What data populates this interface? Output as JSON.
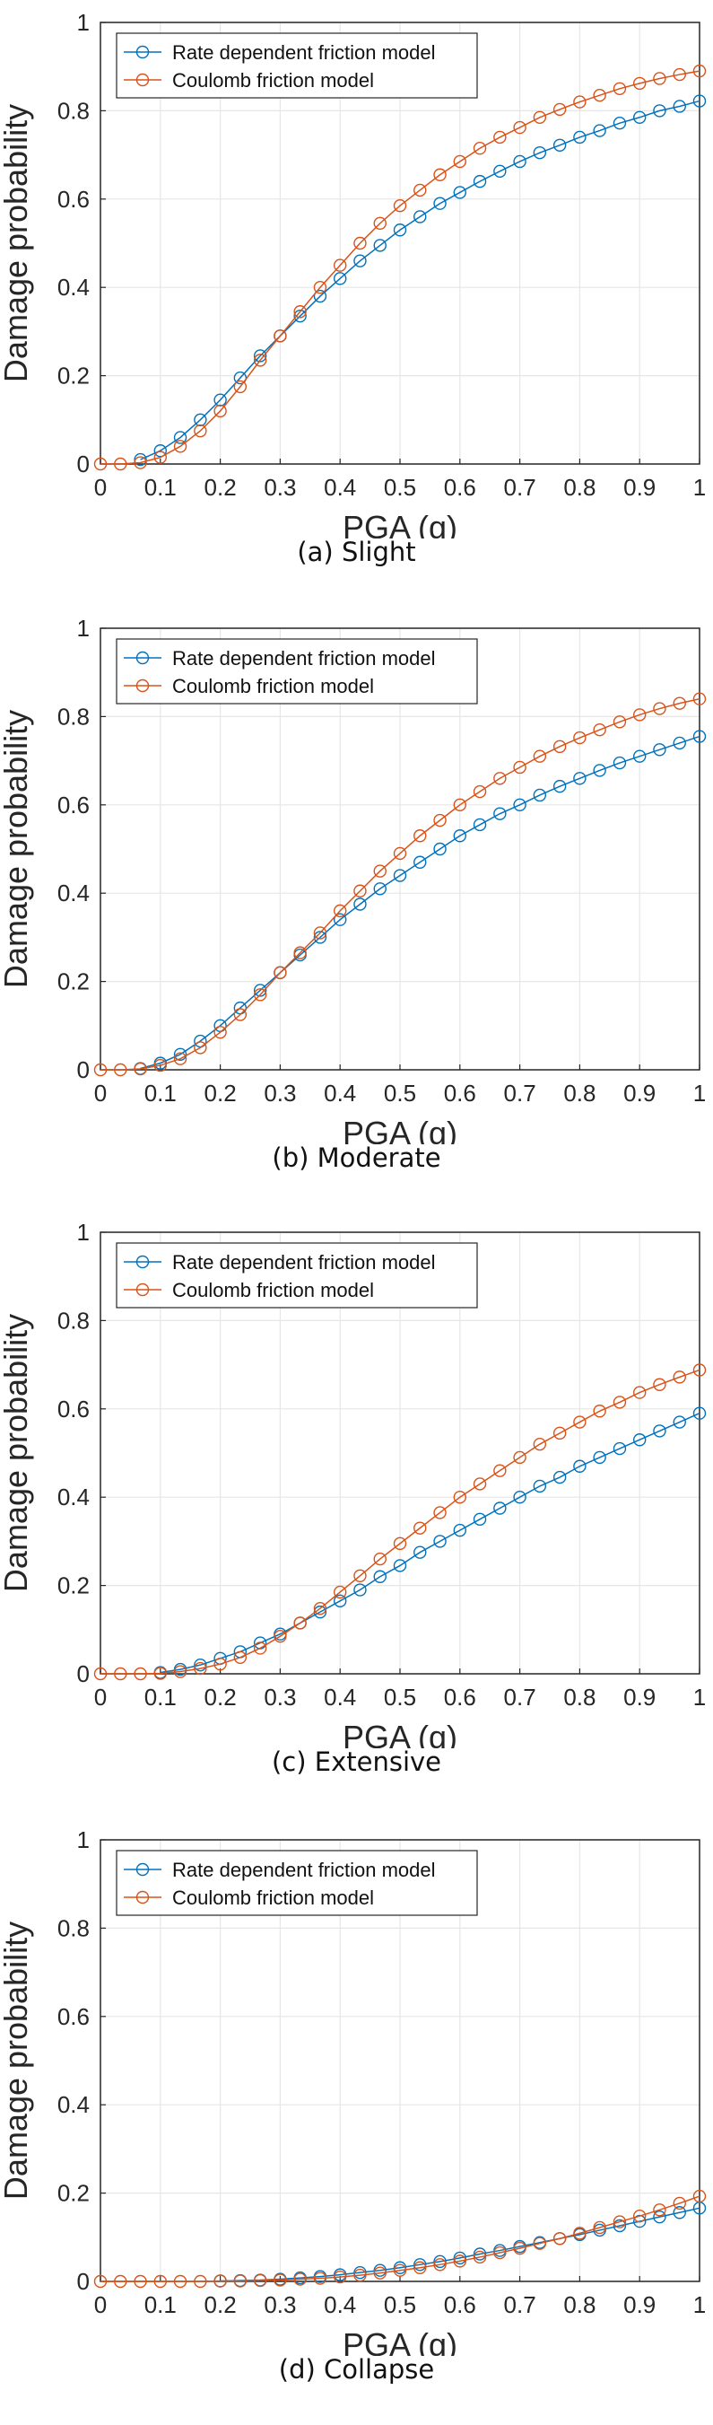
{
  "colors": {
    "rate": "#0072BD",
    "coulomb": "#D95319",
    "grid": "#E6E6E6",
    "axis": "#262626"
  },
  "chart_data": [
    {
      "type": "line",
      "caption": "(a) Slight",
      "xlabel": "PGA (g)",
      "ylabel": "Damage probability",
      "xlim": [
        0,
        1
      ],
      "ylim": [
        0,
        1
      ],
      "xticks": [
        "0",
        "0.1",
        "0.2",
        "0.3",
        "0.4",
        "0.5",
        "0.6",
        "0.7",
        "0.8",
        "0.9",
        "1"
      ],
      "yticks": [
        "0",
        "0.2",
        "0.4",
        "0.6",
        "0.8",
        "1"
      ],
      "grid": true,
      "legend": "top-left",
      "x": [
        0,
        0.0333,
        0.0667,
        0.1,
        0.1333,
        0.1667,
        0.2,
        0.2333,
        0.2667,
        0.3,
        0.3333,
        0.3667,
        0.4,
        0.4333,
        0.4667,
        0.5,
        0.5333,
        0.5667,
        0.6,
        0.6333,
        0.6667,
        0.7,
        0.7333,
        0.7667,
        0.8,
        0.8333,
        0.8667,
        0.9,
        0.9333,
        0.9667,
        1
      ],
      "series": [
        {
          "name": "Rate dependent friction model",
          "start": 2,
          "values": [
            null,
            null,
            0.01,
            0.03,
            0.06,
            0.1,
            0.145,
            0.195,
            0.245,
            0.29,
            0.335,
            0.38,
            0.42,
            0.46,
            0.495,
            0.53,
            0.56,
            0.59,
            0.615,
            0.64,
            0.663,
            0.685,
            0.705,
            0.722,
            0.74,
            0.755,
            0.772,
            0.785,
            0.8,
            0.81,
            0.822
          ]
        },
        {
          "name": "Coulomb friction model",
          "start": 0,
          "values": [
            0,
            0,
            0.003,
            0.015,
            0.04,
            0.075,
            0.12,
            0.175,
            0.235,
            0.29,
            0.345,
            0.4,
            0.45,
            0.5,
            0.545,
            0.585,
            0.62,
            0.655,
            0.685,
            0.715,
            0.74,
            0.762,
            0.785,
            0.803,
            0.82,
            0.835,
            0.85,
            0.862,
            0.873,
            0.882,
            0.89
          ]
        }
      ]
    },
    {
      "type": "line",
      "caption": "(b) Moderate",
      "xlabel": "PGA (g)",
      "ylabel": "Damage probability",
      "xlim": [
        0,
        1
      ],
      "ylim": [
        0,
        1
      ],
      "xticks": [
        "0",
        "0.1",
        "0.2",
        "0.3",
        "0.4",
        "0.5",
        "0.6",
        "0.7",
        "0.8",
        "0.9",
        "1"
      ],
      "yticks": [
        "0",
        "0.2",
        "0.4",
        "0.6",
        "0.8",
        "1"
      ],
      "grid": true,
      "legend": "top-left",
      "x": [
        0,
        0.0333,
        0.0667,
        0.1,
        0.1333,
        0.1667,
        0.2,
        0.2333,
        0.2667,
        0.3,
        0.3333,
        0.3667,
        0.4,
        0.4333,
        0.4667,
        0.5,
        0.5333,
        0.5667,
        0.6,
        0.6333,
        0.6667,
        0.7,
        0.7333,
        0.7667,
        0.8,
        0.8333,
        0.8667,
        0.9,
        0.9333,
        0.9667,
        1
      ],
      "series": [
        {
          "name": "Rate dependent friction model",
          "start": 2,
          "values": [
            null,
            null,
            0.003,
            0.015,
            0.035,
            0.065,
            0.1,
            0.14,
            0.18,
            0.22,
            0.26,
            0.3,
            0.34,
            0.375,
            0.41,
            0.44,
            0.47,
            0.5,
            0.53,
            0.555,
            0.58,
            0.6,
            0.622,
            0.642,
            0.66,
            0.678,
            0.695,
            0.71,
            0.725,
            0.74,
            0.755
          ]
        },
        {
          "name": "Coulomb friction model",
          "start": 0,
          "values": [
            0,
            0,
            0.002,
            0.01,
            0.025,
            0.05,
            0.085,
            0.125,
            0.17,
            0.22,
            0.265,
            0.31,
            0.36,
            0.405,
            0.45,
            0.49,
            0.53,
            0.565,
            0.6,
            0.63,
            0.66,
            0.685,
            0.71,
            0.732,
            0.752,
            0.77,
            0.788,
            0.804,
            0.818,
            0.83,
            0.84
          ]
        }
      ]
    },
    {
      "type": "line",
      "caption": "(c) Extensive",
      "xlabel": "PGA (g)",
      "ylabel": "Damage probability",
      "xlim": [
        0,
        1
      ],
      "ylim": [
        0,
        1
      ],
      "xticks": [
        "0",
        "0.1",
        "0.2",
        "0.3",
        "0.4",
        "0.5",
        "0.6",
        "0.7",
        "0.8",
        "0.9",
        "1"
      ],
      "yticks": [
        "0",
        "0.2",
        "0.4",
        "0.6",
        "0.8",
        "1"
      ],
      "grid": true,
      "legend": "top-left",
      "x": [
        0,
        0.0333,
        0.0667,
        0.1,
        0.1333,
        0.1667,
        0.2,
        0.2333,
        0.2667,
        0.3,
        0.3333,
        0.3667,
        0.4,
        0.4333,
        0.4667,
        0.5,
        0.5333,
        0.5667,
        0.6,
        0.6333,
        0.6667,
        0.7,
        0.7333,
        0.7667,
        0.8,
        0.8333,
        0.8667,
        0.9,
        0.9333,
        0.9667,
        1
      ],
      "series": [
        {
          "name": "Rate dependent friction model",
          "start": 3,
          "values": [
            null,
            null,
            null,
            0.003,
            0.01,
            0.02,
            0.035,
            0.05,
            0.07,
            0.09,
            0.115,
            0.14,
            0.165,
            0.19,
            0.22,
            0.245,
            0.275,
            0.3,
            0.325,
            0.35,
            0.375,
            0.4,
            0.425,
            0.445,
            0.47,
            0.49,
            0.51,
            0.53,
            0.55,
            0.57,
            0.59
          ]
        },
        {
          "name": "Coulomb friction model",
          "start": 0,
          "values": [
            0,
            0,
            0,
            0.001,
            0.005,
            0.012,
            0.022,
            0.037,
            0.058,
            0.085,
            0.115,
            0.148,
            0.185,
            0.222,
            0.26,
            0.295,
            0.33,
            0.365,
            0.4,
            0.43,
            0.46,
            0.49,
            0.52,
            0.545,
            0.57,
            0.595,
            0.615,
            0.637,
            0.655,
            0.672,
            0.688
          ]
        }
      ]
    },
    {
      "type": "line",
      "caption": "(d) Collapse",
      "xlabel": "PGA (g)",
      "ylabel": "Damage probability",
      "xlim": [
        0,
        1
      ],
      "ylim": [
        0,
        1
      ],
      "xticks": [
        "0",
        "0.1",
        "0.2",
        "0.3",
        "0.4",
        "0.5",
        "0.6",
        "0.7",
        "0.8",
        "0.9",
        "1"
      ],
      "yticks": [
        "0",
        "0.2",
        "0.4",
        "0.6",
        "0.8",
        "1"
      ],
      "grid": true,
      "legend": "top-left",
      "x": [
        0,
        0.0333,
        0.0667,
        0.1,
        0.1333,
        0.1667,
        0.2,
        0.2333,
        0.2667,
        0.3,
        0.3333,
        0.3667,
        0.4,
        0.4333,
        0.4667,
        0.5,
        0.5333,
        0.5667,
        0.6,
        0.6333,
        0.6667,
        0.7,
        0.7333,
        0.7667,
        0.8,
        0.8333,
        0.8667,
        0.9,
        0.9333,
        0.9667,
        1
      ],
      "series": [
        {
          "name": "Rate dependent friction model",
          "start": 6,
          "values": [
            null,
            null,
            null,
            null,
            null,
            null,
            0.001,
            0.002,
            0.003,
            0.005,
            0.008,
            0.011,
            0.015,
            0.02,
            0.025,
            0.031,
            0.038,
            0.045,
            0.053,
            0.062,
            0.07,
            0.079,
            0.088,
            0.097,
            0.106,
            0.116,
            0.126,
            0.136,
            0.146,
            0.156,
            0.166
          ]
        },
        {
          "name": "Coulomb friction model",
          "start": 0,
          "values": [
            0,
            0,
            0,
            0,
            0,
            0,
            0.001,
            0.001,
            0.002,
            0.003,
            0.005,
            0.007,
            0.01,
            0.014,
            0.019,
            0.025,
            0.031,
            0.038,
            0.046,
            0.055,
            0.065,
            0.075,
            0.086,
            0.097,
            0.109,
            0.122,
            0.135,
            0.148,
            0.162,
            0.177,
            0.193
          ]
        }
      ]
    }
  ]
}
